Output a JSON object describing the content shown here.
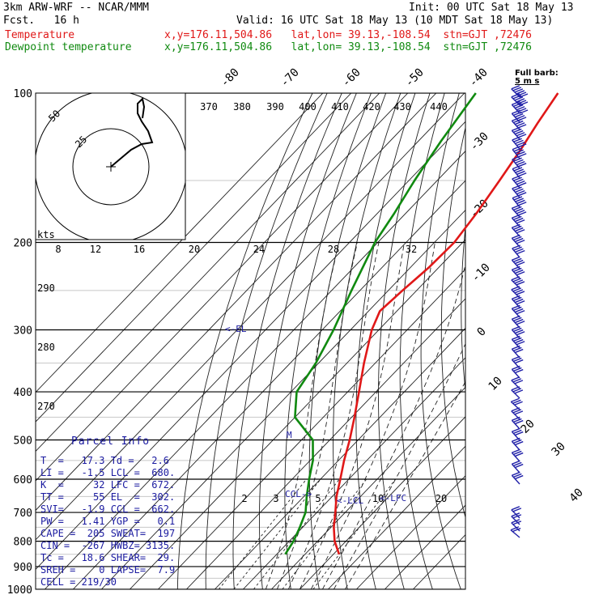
{
  "header": {
    "model": "3km ARW-WRF -- NCAR/MMM",
    "forecast": "Fcst.   16 h",
    "init": "Init: 00 UTC Sat 18 May 13",
    "valid": "Valid: 16 UTC Sat 18 May 13 (10 MDT Sat 18 May 13)",
    "temp_label": "Temperature",
    "temp_loc": "x,y=176.11,504.86   lat,lon= 39.13,-108.54  stn=GJT ,72476",
    "dew_label": "Dewpoint temperature",
    "dew_loc": "x,y=176.11,504.86   lat,lon= 39.13,-108.54  stn=GJT ,72476"
  },
  "full_barb": {
    "line1": "Full barb:",
    "line2": "5 m s"
  },
  "colors": {
    "temperature": "#e01818",
    "dewpoint": "#108a10",
    "barbs": "#2020a8",
    "text_blue": "#1a1aa0"
  },
  "parcel_info": {
    "title": "Parcel Info",
    "rows": [
      "T  =   17.3 Td =   2.6",
      "LI =   -1.5 LCL =  680.",
      "K  =     32 LFC =  672.",
      "TT =     55 EL  =  302.",
      "SVI=   -1.9 CCL =  662.",
      "PW =   1.41 YGP =   0.1",
      "CAPE =  205 SWEAT=  197",
      "CIN =  -267 HWBZ= 3135.",
      "Tc =   18.6 SHEAR=  29.",
      "SREH =    0 LAPSE=  7.9",
      "CELL = 219/30"
    ]
  },
  "labels": {
    "el": "<-EL",
    "lcl": "<-LCL",
    "lfc": "<-LFC",
    "ccl": "CCL->",
    "m": "M",
    "kts": "kts"
  },
  "chart_data": {
    "type": "line",
    "title": "3km ARW-WRF -- NCAR/MMM",
    "y_axis": {
      "type": "log-pressure",
      "unit": "hPa",
      "ticks": [
        100,
        200,
        300,
        400,
        500,
        600,
        700,
        800,
        900,
        1000
      ],
      "range": [
        1000,
        100
      ]
    },
    "x_axis": {
      "type": "skewed-temperature",
      "unit": "C",
      "isotherm_labels": [
        -80,
        -70,
        -60,
        -50,
        -40,
        -30,
        -20,
        -10,
        0,
        10,
        20,
        30,
        40
      ]
    },
    "theta_labels": [
      370,
      380,
      390,
      400,
      410,
      420,
      430,
      440,
      290,
      280,
      270
    ],
    "mixing_ratio_labels": [
      2,
      3,
      5,
      10,
      20
    ],
    "series": [
      {
        "name": "Temperature",
        "points": [
          {
            "p": 850,
            "t": 22
          },
          {
            "p": 800,
            "t": 16
          },
          {
            "p": 750,
            "t": 11
          },
          {
            "p": 700,
            "t": 6.5
          },
          {
            "p": 650,
            "t": 1.5
          },
          {
            "p": 600,
            "t": -3
          },
          {
            "p": 550,
            "t": -8
          },
          {
            "p": 500,
            "t": -13
          },
          {
            "p": 450,
            "t": -19
          },
          {
            "p": 400,
            "t": -26
          },
          {
            "p": 350,
            "t": -34
          },
          {
            "p": 300,
            "t": -42.5
          },
          {
            "p": 275,
            "t": -46
          },
          {
            "p": 250,
            "t": -45
          },
          {
            "p": 225,
            "t": -43.5
          },
          {
            "p": 200,
            "t": -43
          },
          {
            "p": 175,
            "t": -45
          },
          {
            "p": 150,
            "t": -48
          },
          {
            "p": 130,
            "t": -51
          },
          {
            "p": 115,
            "t": -54
          },
          {
            "p": 100,
            "t": -57
          }
        ]
      },
      {
        "name": "Dewpoint temperature",
        "points": [
          {
            "p": 850,
            "t": 3
          },
          {
            "p": 800,
            "t": 1.5
          },
          {
            "p": 750,
            "t": -1
          },
          {
            "p": 700,
            "t": -4
          },
          {
            "p": 650,
            "t": -9
          },
          {
            "p": 600,
            "t": -14
          },
          {
            "p": 550,
            "t": -19
          },
          {
            "p": 500,
            "t": -26
          },
          {
            "p": 450,
            "t": -40
          },
          {
            "p": 400,
            "t": -48
          },
          {
            "p": 350,
            "t": -51
          },
          {
            "p": 300,
            "t": -56
          },
          {
            "p": 250,
            "t": -63
          },
          {
            "p": 200,
            "t": -71
          },
          {
            "p": 175,
            "t": -74
          },
          {
            "p": 150,
            "t": -78
          },
          {
            "p": 125,
            "t": -82
          },
          {
            "p": 100,
            "t": -86
          }
        ]
      }
    ],
    "hodograph": {
      "unit": "kts",
      "rings": [
        8,
        12,
        16,
        20,
        24,
        28,
        32
      ],
      "ring_labels_inside": [
        25,
        50
      ]
    }
  }
}
